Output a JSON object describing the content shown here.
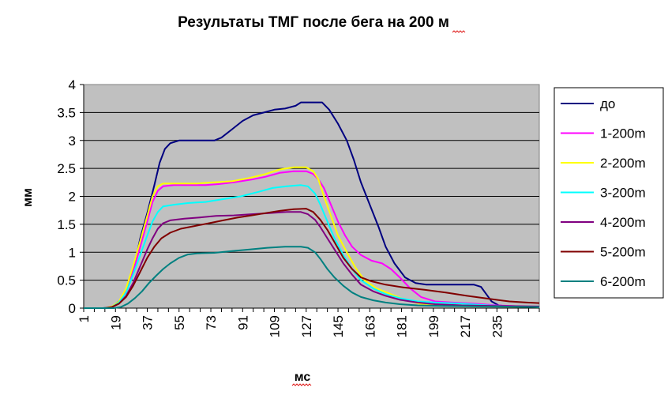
{
  "chart_data": {
    "type": "line",
    "title": "Результаты ТМГ после бега на 200 м",
    "xlabel": "мс",
    "ylabel": "мм",
    "x_range": [
      1,
      259
    ],
    "ylim": [
      0,
      4
    ],
    "y_ticks": [
      "0",
      "0.5",
      "1",
      "1.5",
      "2",
      "2.5",
      "3",
      "3.5",
      "4"
    ],
    "x_ticks": [
      "1",
      "19",
      "37",
      "55",
      "73",
      "91",
      "109",
      "127",
      "145",
      "163",
      "181",
      "199",
      "217",
      "235"
    ],
    "grid": true,
    "legend_position": "right",
    "series": [
      {
        "name": "до",
        "color": "#000080",
        "points": [
          [
            1,
            0
          ],
          [
            12,
            0
          ],
          [
            17,
            0.02
          ],
          [
            22,
            0.15
          ],
          [
            27,
            0.45
          ],
          [
            30,
            0.8
          ],
          [
            33,
            1.25
          ],
          [
            37,
            1.7
          ],
          [
            41,
            2.2
          ],
          [
            44,
            2.6
          ],
          [
            47,
            2.85
          ],
          [
            50,
            2.95
          ],
          [
            55,
            3.0
          ],
          [
            65,
            3.0
          ],
          [
            75,
            3.0
          ],
          [
            79,
            3.05
          ],
          [
            85,
            3.2
          ],
          [
            91,
            3.35
          ],
          [
            97,
            3.45
          ],
          [
            103,
            3.5
          ],
          [
            109,
            3.55
          ],
          [
            115,
            3.57
          ],
          [
            121,
            3.62
          ],
          [
            124,
            3.68
          ],
          [
            130,
            3.68
          ],
          [
            136,
            3.68
          ],
          [
            140,
            3.55
          ],
          [
            145,
            3.3
          ],
          [
            150,
            3.0
          ],
          [
            154,
            2.65
          ],
          [
            158,
            2.25
          ],
          [
            163,
            1.85
          ],
          [
            168,
            1.45
          ],
          [
            172,
            1.1
          ],
          [
            177,
            0.8
          ],
          [
            183,
            0.55
          ],
          [
            189,
            0.45
          ],
          [
            195,
            0.42
          ],
          [
            205,
            0.42
          ],
          [
            215,
            0.42
          ],
          [
            222,
            0.42
          ],
          [
            226,
            0.38
          ],
          [
            229,
            0.25
          ],
          [
            232,
            0.12
          ],
          [
            236,
            0.05
          ],
          [
            242,
            0.03
          ],
          [
            259,
            0.02
          ]
        ]
      },
      {
        "name": "1-200m",
        "color": "#ff00ff",
        "points": [
          [
            1,
            0
          ],
          [
            13,
            0
          ],
          [
            17,
            0.02
          ],
          [
            21,
            0.1
          ],
          [
            25,
            0.3
          ],
          [
            29,
            0.65
          ],
          [
            33,
            1.1
          ],
          [
            37,
            1.55
          ],
          [
            40,
            1.9
          ],
          [
            43,
            2.1
          ],
          [
            46,
            2.18
          ],
          [
            52,
            2.2
          ],
          [
            60,
            2.2
          ],
          [
            70,
            2.2
          ],
          [
            78,
            2.22
          ],
          [
            86,
            2.25
          ],
          [
            96,
            2.3
          ],
          [
            104,
            2.35
          ],
          [
            112,
            2.42
          ],
          [
            120,
            2.45
          ],
          [
            127,
            2.45
          ],
          [
            131,
            2.4
          ],
          [
            134,
            2.3
          ],
          [
            137,
            2.15
          ],
          [
            141,
            1.85
          ],
          [
            145,
            1.55
          ],
          [
            149,
            1.3
          ],
          [
            153,
            1.1
          ],
          [
            158,
            0.95
          ],
          [
            164,
            0.85
          ],
          [
            170,
            0.8
          ],
          [
            175,
            0.7
          ],
          [
            180,
            0.55
          ],
          [
            186,
            0.35
          ],
          [
            192,
            0.2
          ],
          [
            200,
            0.12
          ],
          [
            210,
            0.1
          ],
          [
            222,
            0.08
          ],
          [
            235,
            0.05
          ],
          [
            250,
            0.03
          ],
          [
            259,
            0.02
          ]
        ]
      },
      {
        "name": "2-200m",
        "color": "#ffff00",
        "points": [
          [
            1,
            0
          ],
          [
            13,
            0
          ],
          [
            17,
            0.03
          ],
          [
            21,
            0.12
          ],
          [
            25,
            0.35
          ],
          [
            29,
            0.75
          ],
          [
            33,
            1.2
          ],
          [
            37,
            1.65
          ],
          [
            40,
            2.0
          ],
          [
            43,
            2.18
          ],
          [
            46,
            2.23
          ],
          [
            55,
            2.23
          ],
          [
            65,
            2.23
          ],
          [
            75,
            2.25
          ],
          [
            85,
            2.27
          ],
          [
            95,
            2.33
          ],
          [
            104,
            2.4
          ],
          [
            112,
            2.48
          ],
          [
            120,
            2.52
          ],
          [
            127,
            2.52
          ],
          [
            131,
            2.45
          ],
          [
            134,
            2.3
          ],
          [
            137,
            2.0
          ],
          [
            141,
            1.65
          ],
          [
            145,
            1.3
          ],
          [
            150,
            1.0
          ],
          [
            155,
            0.72
          ],
          [
            160,
            0.5
          ],
          [
            167,
            0.35
          ],
          [
            175,
            0.25
          ],
          [
            183,
            0.15
          ],
          [
            191,
            0.08
          ],
          [
            200,
            0.05
          ],
          [
            215,
            0.04
          ],
          [
            235,
            0.03
          ],
          [
            259,
            0.02
          ]
        ]
      },
      {
        "name": "3-200m",
        "color": "#00ffff",
        "points": [
          [
            1,
            0
          ],
          [
            13,
            0
          ],
          [
            17,
            0.02
          ],
          [
            21,
            0.1
          ],
          [
            25,
            0.28
          ],
          [
            29,
            0.6
          ],
          [
            33,
            0.95
          ],
          [
            37,
            1.3
          ],
          [
            40,
            1.55
          ],
          [
            43,
            1.72
          ],
          [
            46,
            1.82
          ],
          [
            52,
            1.85
          ],
          [
            60,
            1.88
          ],
          [
            70,
            1.9
          ],
          [
            80,
            1.95
          ],
          [
            90,
            2.0
          ],
          [
            100,
            2.08
          ],
          [
            108,
            2.15
          ],
          [
            116,
            2.18
          ],
          [
            124,
            2.2
          ],
          [
            128,
            2.18
          ],
          [
            132,
            2.05
          ],
          [
            135,
            1.85
          ],
          [
            139,
            1.55
          ],
          [
            143,
            1.25
          ],
          [
            148,
            0.95
          ],
          [
            153,
            0.7
          ],
          [
            158,
            0.5
          ],
          [
            165,
            0.35
          ],
          [
            172,
            0.25
          ],
          [
            180,
            0.18
          ],
          [
            190,
            0.12
          ],
          [
            200,
            0.1
          ],
          [
            215,
            0.08
          ],
          [
            230,
            0.05
          ],
          [
            245,
            0.03
          ],
          [
            259,
            0.02
          ]
        ]
      },
      {
        "name": "4-200m",
        "color": "#800080",
        "points": [
          [
            1,
            0
          ],
          [
            13,
            0
          ],
          [
            17,
            0.02
          ],
          [
            21,
            0.08
          ],
          [
            25,
            0.22
          ],
          [
            29,
            0.45
          ],
          [
            33,
            0.75
          ],
          [
            37,
            1.05
          ],
          [
            40,
            1.25
          ],
          [
            43,
            1.42
          ],
          [
            46,
            1.52
          ],
          [
            50,
            1.57
          ],
          [
            58,
            1.6
          ],
          [
            66,
            1.62
          ],
          [
            76,
            1.65
          ],
          [
            86,
            1.66
          ],
          [
            96,
            1.68
          ],
          [
            106,
            1.7
          ],
          [
            116,
            1.72
          ],
          [
            124,
            1.72
          ],
          [
            128,
            1.68
          ],
          [
            132,
            1.58
          ],
          [
            135,
            1.45
          ],
          [
            139,
            1.25
          ],
          [
            143,
            1.05
          ],
          [
            148,
            0.8
          ],
          [
            153,
            0.6
          ],
          [
            158,
            0.42
          ],
          [
            165,
            0.3
          ],
          [
            172,
            0.22
          ],
          [
            180,
            0.15
          ],
          [
            190,
            0.1
          ],
          [
            200,
            0.07
          ],
          [
            215,
            0.05
          ],
          [
            235,
            0.04
          ],
          [
            259,
            0.03
          ]
        ]
      },
      {
        "name": "5-200m",
        "color": "#800000",
        "points": [
          [
            1,
            0
          ],
          [
            13,
            0
          ],
          [
            17,
            0.02
          ],
          [
            21,
            0.08
          ],
          [
            25,
            0.2
          ],
          [
            29,
            0.4
          ],
          [
            33,
            0.65
          ],
          [
            37,
            0.9
          ],
          [
            41,
            1.1
          ],
          [
            45,
            1.25
          ],
          [
            50,
            1.35
          ],
          [
            56,
            1.42
          ],
          [
            64,
            1.47
          ],
          [
            72,
            1.52
          ],
          [
            80,
            1.57
          ],
          [
            88,
            1.62
          ],
          [
            96,
            1.66
          ],
          [
            104,
            1.7
          ],
          [
            112,
            1.74
          ],
          [
            120,
            1.77
          ],
          [
            127,
            1.78
          ],
          [
            131,
            1.72
          ],
          [
            135,
            1.58
          ],
          [
            139,
            1.4
          ],
          [
            143,
            1.18
          ],
          [
            148,
            0.9
          ],
          [
            153,
            0.7
          ],
          [
            158,
            0.55
          ],
          [
            164,
            0.48
          ],
          [
            172,
            0.42
          ],
          [
            182,
            0.37
          ],
          [
            194,
            0.33
          ],
          [
            206,
            0.28
          ],
          [
            218,
            0.22
          ],
          [
            230,
            0.17
          ],
          [
            242,
            0.12
          ],
          [
            252,
            0.1
          ],
          [
            259,
            0.09
          ]
        ]
      },
      {
        "name": "6-200m",
        "color": "#008080",
        "points": [
          [
            1,
            0
          ],
          [
            18,
            0
          ],
          [
            22,
            0.02
          ],
          [
            26,
            0.08
          ],
          [
            30,
            0.18
          ],
          [
            34,
            0.3
          ],
          [
            38,
            0.45
          ],
          [
            42,
            0.58
          ],
          [
            46,
            0.7
          ],
          [
            50,
            0.8
          ],
          [
            55,
            0.9
          ],
          [
            60,
            0.96
          ],
          [
            65,
            0.98
          ],
          [
            75,
            0.99
          ],
          [
            85,
            1.02
          ],
          [
            95,
            1.05
          ],
          [
            105,
            1.08
          ],
          [
            115,
            1.1
          ],
          [
            124,
            1.1
          ],
          [
            128,
            1.08
          ],
          [
            132,
            1.0
          ],
          [
            135,
            0.88
          ],
          [
            139,
            0.7
          ],
          [
            143,
            0.55
          ],
          [
            148,
            0.4
          ],
          [
            153,
            0.28
          ],
          [
            158,
            0.2
          ],
          [
            165,
            0.14
          ],
          [
            172,
            0.1
          ],
          [
            180,
            0.07
          ],
          [
            190,
            0.05
          ],
          [
            205,
            0.04
          ],
          [
            225,
            0.03
          ],
          [
            259,
            0.02
          ]
        ]
      }
    ]
  }
}
